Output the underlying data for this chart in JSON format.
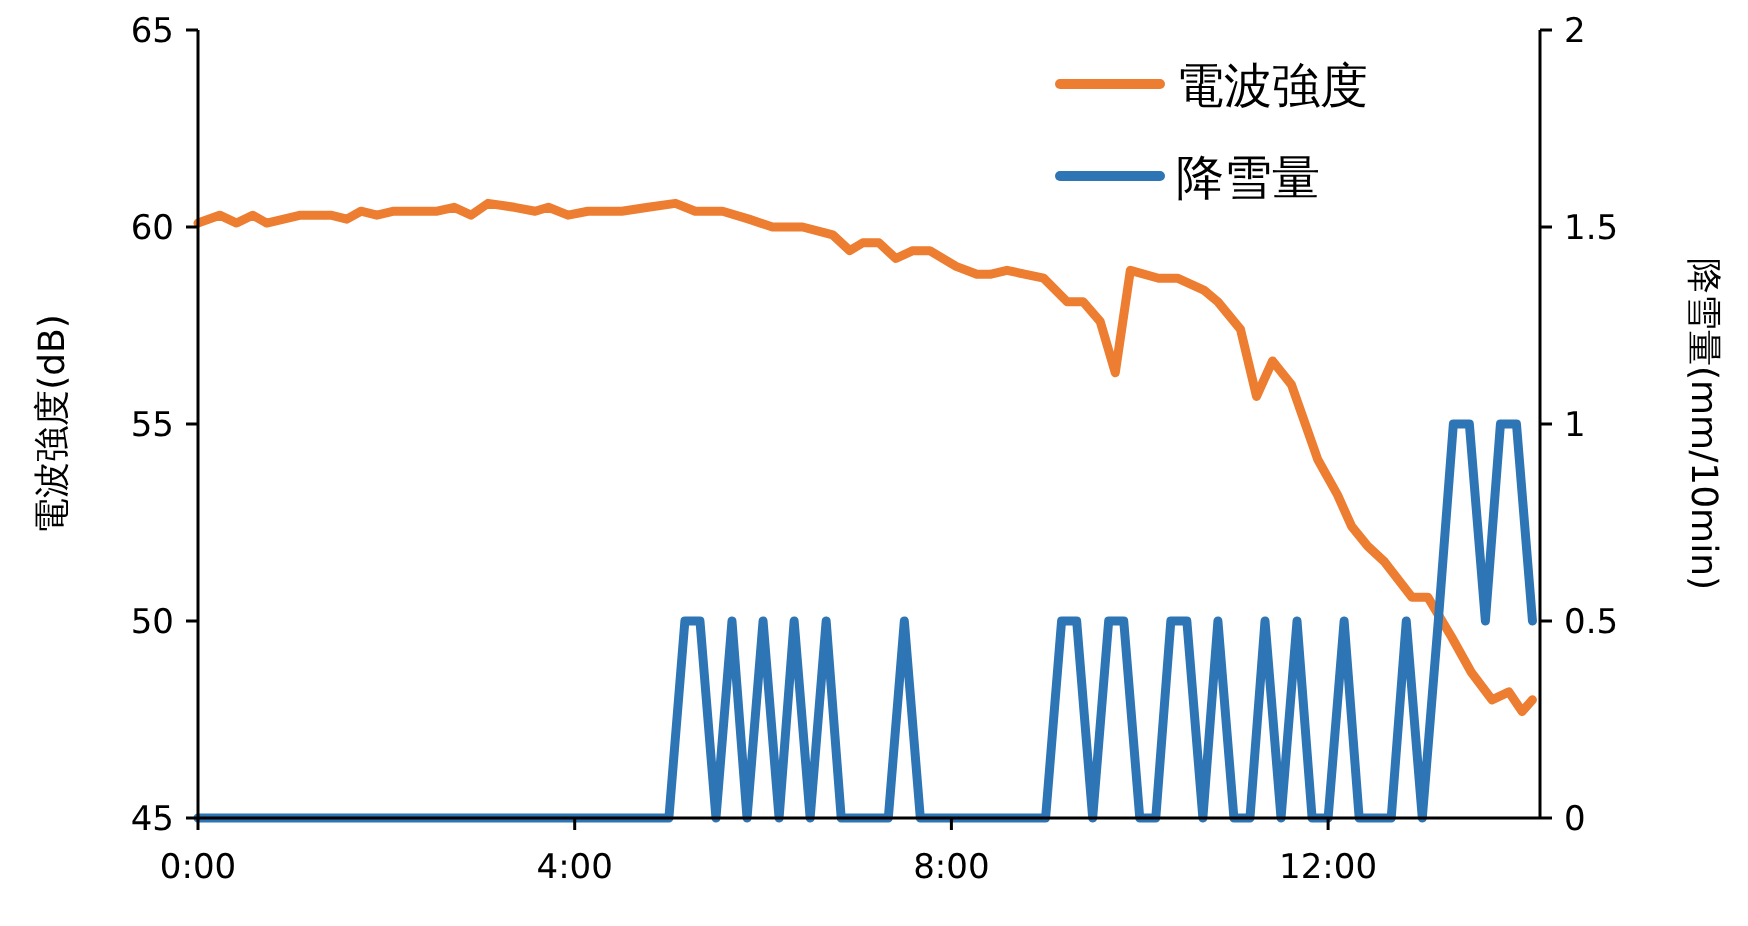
{
  "chart_data": {
    "type": "line",
    "ylabel": "電波強度(dB)",
    "y2label": "降雪量(mm/10min)",
    "xlim": [
      0,
      14.25
    ],
    "xticks": [
      {
        "value": 0,
        "label": "0:00"
      },
      {
        "value": 4,
        "label": "4:00"
      },
      {
        "value": 8,
        "label": "8:00"
      },
      {
        "value": 12,
        "label": "12:00"
      }
    ],
    "ylim": [
      45,
      65
    ],
    "yticks": [
      45,
      50,
      55,
      60,
      65
    ],
    "y2lim": [
      0,
      2
    ],
    "y2ticks": [
      0,
      0.5,
      1,
      1.5,
      2
    ],
    "legend": "top right",
    "grid": false,
    "marker": "none",
    "line_style": "solid",
    "series": [
      {
        "name": "電波強度",
        "color": "#ed7d31",
        "x": [
          0,
          0.23,
          0.41,
          0.58,
          0.73,
          1.09,
          1.41,
          1.58,
          1.73,
          1.9,
          2.08,
          2.54,
          2.72,
          2.9,
          3.08,
          3.36,
          3.58,
          3.72,
          3.93,
          4.14,
          4.5,
          4.78,
          5.07,
          5.28,
          5.57,
          5.85,
          6.1,
          6.42,
          6.74,
          6.92,
          7.06,
          7.23,
          7.41,
          7.59,
          7.77,
          8.05,
          8.27,
          8.41,
          8.59,
          8.98,
          9.23,
          9.4,
          9.58,
          9.74,
          9.9,
          10.2,
          10.4,
          10.68,
          10.83,
          11.07,
          11.24,
          11.41,
          11.61,
          11.89,
          12.1,
          12.25,
          12.42,
          12.6,
          12.89,
          13.06,
          13.31,
          13.52,
          13.74,
          13.92,
          14.06,
          14.17
        ],
        "values": [
          60.1,
          60.3,
          60.1,
          60.3,
          60.1,
          60.3,
          60.3,
          60.2,
          60.4,
          60.3,
          60.4,
          60.4,
          60.5,
          60.3,
          60.6,
          60.5,
          60.4,
          60.5,
          60.3,
          60.4,
          60.4,
          60.5,
          60.6,
          60.4,
          60.4,
          60.2,
          60.0,
          60.0,
          59.8,
          59.4,
          59.6,
          59.6,
          59.2,
          59.4,
          59.4,
          59.0,
          58.8,
          58.8,
          58.9,
          58.7,
          58.1,
          58.1,
          57.6,
          56.3,
          58.9,
          58.7,
          58.7,
          58.4,
          58.1,
          57.4,
          55.7,
          56.6,
          56.0,
          54.1,
          53.2,
          52.4,
          51.9,
          51.5,
          50.6,
          50.6,
          49.6,
          48.7,
          48.0,
          48.2,
          47.7,
          48.0
        ]
      },
      {
        "name": "降雪量",
        "color": "#2e75b6",
        "axis": "y2",
        "x": [
          0,
          0.17,
          0.33,
          0.5,
          0.67,
          0.83,
          1,
          1.17,
          1.33,
          1.5,
          1.67,
          1.83,
          2,
          2.17,
          2.33,
          2.5,
          2.67,
          2.83,
          3,
          3.17,
          3.33,
          3.5,
          3.67,
          3.83,
          4,
          4.17,
          4.33,
          4.5,
          4.67,
          4.83,
          5,
          5.17,
          5.33,
          5.5,
          5.67,
          5.83,
          6,
          6.17,
          6.33,
          6.5,
          6.67,
          6.83,
          7,
          7.17,
          7.33,
          7.5,
          7.67,
          7.83,
          8,
          8.17,
          8.33,
          8.5,
          8.67,
          8.83,
          9,
          9.17,
          9.33,
          9.5,
          9.67,
          9.83,
          10,
          10.17,
          10.33,
          10.5,
          10.67,
          10.83,
          11,
          11.17,
          11.33,
          11.5,
          11.67,
          11.83,
          12,
          12.17,
          12.33,
          12.5,
          12.67,
          12.83,
          13,
          13.17,
          13.33,
          13.5,
          13.67,
          13.83,
          14,
          14.17
        ],
        "values": [
          0,
          0,
          0,
          0,
          0,
          0,
          0,
          0,
          0,
          0,
          0,
          0,
          0,
          0,
          0,
          0,
          0,
          0,
          0,
          0,
          0,
          0,
          0,
          0,
          0,
          0,
          0,
          0,
          0,
          0,
          0,
          0.5,
          0.5,
          0,
          0.5,
          0,
          0.5,
          0,
          0.5,
          0,
          0.5,
          0,
          0,
          0,
          0,
          0.5,
          0,
          0,
          0,
          0,
          0,
          0,
          0,
          0,
          0,
          0.5,
          0.5,
          0,
          0.5,
          0.5,
          0,
          0,
          0.5,
          0.5,
          0,
          0.5,
          0,
          0,
          0.5,
          0,
          0.5,
          0,
          0,
          0.5,
          0,
          0,
          0,
          0.5,
          0,
          0.5,
          1,
          1,
          0.5,
          1,
          1,
          0.5
        ]
      }
    ]
  }
}
